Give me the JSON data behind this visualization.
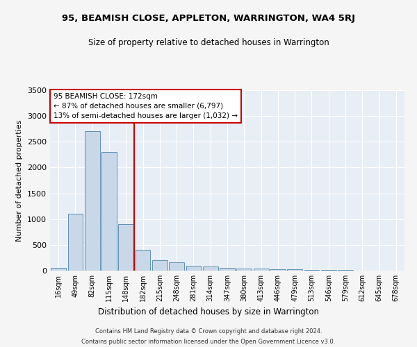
{
  "title": "95, BEAMISH CLOSE, APPLETON, WARRINGTON, WA4 5RJ",
  "subtitle": "Size of property relative to detached houses in Warrington",
  "xlabel": "Distribution of detached houses by size in Warrington",
  "ylabel": "Number of detached properties",
  "bar_color": "#c8d8e8",
  "bar_edge_color": "#6090b0",
  "bg_color": "#e8eef5",
  "grid_color": "#ffffff",
  "fig_bg_color": "#f5f5f5",
  "categories": [
    "16sqm",
    "49sqm",
    "82sqm",
    "115sqm",
    "148sqm",
    "182sqm",
    "215sqm",
    "248sqm",
    "281sqm",
    "314sqm",
    "347sqm",
    "380sqm",
    "413sqm",
    "446sqm",
    "479sqm",
    "513sqm",
    "546sqm",
    "579sqm",
    "612sqm",
    "645sqm",
    "678sqm"
  ],
  "values": [
    50,
    1100,
    2700,
    2300,
    900,
    400,
    200,
    155,
    100,
    75,
    55,
    40,
    35,
    28,
    22,
    17,
    12,
    8,
    6,
    4,
    3
  ],
  "vline_x": 4.5,
  "vline_color": "#cc0000",
  "annotation_text": "95 BEAMISH CLOSE: 172sqm\n← 87% of detached houses are smaller (6,797)\n13% of semi-detached houses are larger (1,032) →",
  "ylim": [
    0,
    3500
  ],
  "yticks": [
    0,
    500,
    1000,
    1500,
    2000,
    2500,
    3000,
    3500
  ],
  "footer1": "Contains HM Land Registry data © Crown copyright and database right 2024.",
  "footer2": "Contains public sector information licensed under the Open Government Licence v3.0."
}
